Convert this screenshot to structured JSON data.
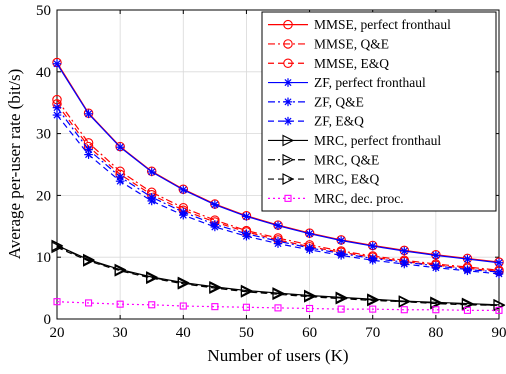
{
  "chart_data": {
    "type": "line",
    "xlabel": "Number of users (K)",
    "ylabel": "Average per-user rate (bit/s)",
    "xlim": [
      20,
      90
    ],
    "ylim": [
      0,
      50
    ],
    "xticks": [
      20,
      30,
      40,
      50,
      60,
      70,
      80,
      90
    ],
    "yticks": [
      0,
      10,
      20,
      30,
      40,
      50
    ],
    "grid": true,
    "legend_position": "top-right",
    "x": [
      20,
      25,
      30,
      35,
      40,
      45,
      50,
      55,
      60,
      65,
      70,
      75,
      80,
      85,
      90
    ],
    "series": [
      {
        "name": "MMSE, perfect fronthaul",
        "color": "#ff0000",
        "dash": "solid",
        "marker": "circle",
        "values": [
          41.5,
          33.3,
          27.9,
          23.9,
          21.0,
          18.6,
          16.7,
          15.2,
          13.9,
          12.8,
          11.9,
          11.1,
          10.4,
          9.8,
          9.2
        ]
      },
      {
        "name": "MMSE, Q&E",
        "color": "#ff0000",
        "dash": "dashdot",
        "marker": "circle",
        "values": [
          35.5,
          28.5,
          23.9,
          20.5,
          18.0,
          16.0,
          14.3,
          13.1,
          12.0,
          11.0,
          10.2,
          9.5,
          8.9,
          8.4,
          7.9
        ]
      },
      {
        "name": "MMSE, E&Q",
        "color": "#ff0000",
        "dash": "dashed",
        "marker": "circle",
        "values": [
          34.8,
          27.9,
          23.4,
          20.1,
          17.6,
          15.7,
          14.1,
          12.8,
          11.7,
          10.8,
          10.0,
          9.3,
          8.7,
          8.2,
          7.7
        ]
      },
      {
        "name": "ZF, perfect fronthaul",
        "color": "#0000ff",
        "dash": "solid",
        "marker": "star",
        "values": [
          41.3,
          33.2,
          27.8,
          23.8,
          20.9,
          18.5,
          16.6,
          15.1,
          13.8,
          12.7,
          11.8,
          11.0,
          10.3,
          9.7,
          9.1
        ]
      },
      {
        "name": "ZF, Q&E",
        "color": "#0000ff",
        "dash": "dashdot",
        "marker": "star",
        "values": [
          34.2,
          27.4,
          23.0,
          19.7,
          17.3,
          15.3,
          13.8,
          12.6,
          11.5,
          10.6,
          9.8,
          9.2,
          8.6,
          8.0,
          7.6
        ]
      },
      {
        "name": "ZF, E&Q",
        "color": "#0000ff",
        "dash": "dashed",
        "marker": "star",
        "values": [
          33.0,
          26.6,
          22.3,
          19.1,
          16.8,
          14.9,
          13.4,
          12.2,
          11.2,
          10.3,
          9.5,
          8.9,
          8.3,
          7.8,
          7.3
        ]
      },
      {
        "name": "MRC, perfect fronthaul",
        "color": "#000000",
        "dash": "solid",
        "marker": "triangle",
        "values": [
          11.9,
          9.6,
          8.0,
          6.8,
          5.9,
          5.2,
          4.6,
          4.2,
          3.8,
          3.5,
          3.2,
          2.9,
          2.7,
          2.5,
          2.3
        ]
      },
      {
        "name": "MRC, Q&E",
        "color": "#000000",
        "dash": "dashdot",
        "marker": "triangle",
        "values": [
          11.8,
          9.5,
          7.9,
          6.7,
          5.8,
          5.1,
          4.5,
          4.1,
          3.7,
          3.4,
          3.1,
          2.8,
          2.6,
          2.4,
          2.2
        ]
      },
      {
        "name": "MRC, E&Q",
        "color": "#000000",
        "dash": "dashed",
        "marker": "triangle",
        "values": [
          11.6,
          9.4,
          7.8,
          6.6,
          5.7,
          5.0,
          4.4,
          4.0,
          3.6,
          3.3,
          3.0,
          2.8,
          2.5,
          2.3,
          2.2
        ]
      },
      {
        "name": "MRC, dec. proc.",
        "color": "#ff00ff",
        "dash": "dotted",
        "marker": "square",
        "values": [
          2.8,
          2.6,
          2.4,
          2.3,
          2.1,
          2.0,
          1.9,
          1.8,
          1.7,
          1.6,
          1.6,
          1.5,
          1.5,
          1.4,
          1.4
        ]
      }
    ]
  }
}
